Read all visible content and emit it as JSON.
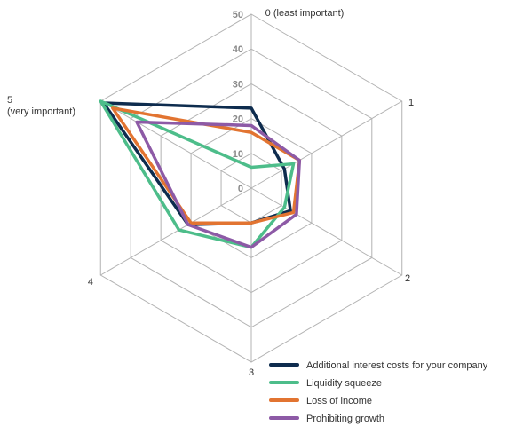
{
  "chart_data": {
    "type": "radar",
    "axes": [
      "0 (least important)",
      "1",
      "2",
      "3",
      "4",
      "5\n(very important)"
    ],
    "rlim": [
      0,
      50
    ],
    "ticks": [
      0,
      10,
      20,
      30,
      40,
      50
    ],
    "tick_labels": [
      "0",
      "10",
      "20",
      "30",
      "40",
      "50"
    ],
    "grid": true,
    "legend_position": "bottom-right",
    "series": [
      {
        "name": "Additional interest costs for your company",
        "color": "#0e2c4e",
        "values": [
          23,
          11,
          13,
          10,
          21,
          49
        ]
      },
      {
        "name": "Liquidity squeeze",
        "color": "#4dbd8a",
        "values": [
          6,
          14,
          11,
          17,
          24,
          50
        ]
      },
      {
        "name": "Loss of income",
        "color": "#e27431",
        "values": [
          16,
          16,
          14,
          10,
          20,
          46
        ]
      },
      {
        "name": "Prohibiting growth",
        "color": "#8d5aa6",
        "values": [
          18,
          16,
          15,
          17,
          21,
          38
        ]
      }
    ]
  }
}
